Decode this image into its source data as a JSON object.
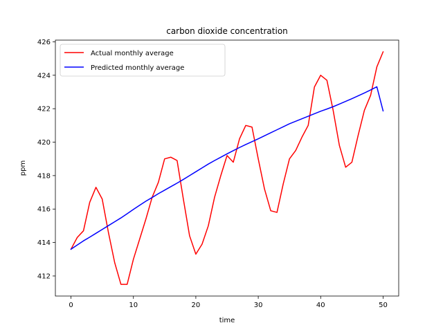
{
  "chart_data": {
    "type": "line",
    "title": "carbon dioxide concentration",
    "xlabel": "time",
    "ylabel": "ppm",
    "xlim": [
      -2.5,
      52.5
    ],
    "ylim": [
      410.8,
      426.1
    ],
    "xticks": [
      0,
      10,
      20,
      30,
      40,
      50
    ],
    "yticks": [
      412,
      414,
      416,
      418,
      420,
      422,
      424,
      426
    ],
    "grid": false,
    "legend": "top-left",
    "x": [
      0,
      1,
      2,
      3,
      4,
      5,
      6,
      7,
      8,
      9,
      10,
      11,
      12,
      13,
      14,
      15,
      16,
      17,
      18,
      19,
      20,
      21,
      22,
      23,
      24,
      25,
      26,
      27,
      28,
      29,
      30,
      31,
      32,
      33,
      34,
      35,
      36,
      37,
      38,
      39,
      40,
      41,
      42,
      43,
      44,
      45,
      46,
      47,
      48,
      49,
      50
    ],
    "series": [
      {
        "name": "Actual monthly average",
        "color": "#ff0000",
        "values": [
          413.6,
          414.3,
          414.7,
          416.4,
          417.3,
          416.6,
          414.6,
          412.8,
          411.5,
          411.5,
          413.0,
          414.2,
          415.4,
          416.7,
          417.6,
          419.0,
          419.1,
          418.9,
          416.6,
          414.4,
          413.3,
          413.9,
          415.0,
          416.7,
          418.0,
          419.2,
          418.8,
          420.2,
          421.0,
          420.9,
          419.0,
          417.2,
          415.9,
          415.8,
          417.5,
          419.0,
          419.5,
          420.3,
          421.0,
          423.3,
          424.0,
          423.7,
          421.9,
          419.8,
          418.5,
          418.8,
          420.4,
          421.9,
          422.8,
          424.5,
          425.4
        ]
      },
      {
        "name": "Predicted monthly average",
        "color": "#0000ff",
        "values": [
          413.6,
          413.85,
          414.1,
          414.32,
          414.55,
          414.78,
          415.01,
          415.24,
          415.47,
          415.72,
          415.98,
          416.23,
          416.47,
          416.69,
          416.92,
          417.13,
          417.34,
          417.55,
          417.77,
          418.0,
          418.23,
          418.46,
          418.69,
          418.9,
          419.1,
          419.3,
          419.49,
          419.68,
          419.86,
          420.03,
          420.2,
          420.38,
          420.56,
          420.74,
          420.92,
          421.1,
          421.25,
          421.4,
          421.55,
          421.7,
          421.85,
          421.98,
          422.12,
          422.28,
          422.44,
          422.6,
          422.77,
          422.94,
          423.12,
          423.31,
          421.87
        ]
      }
    ]
  }
}
